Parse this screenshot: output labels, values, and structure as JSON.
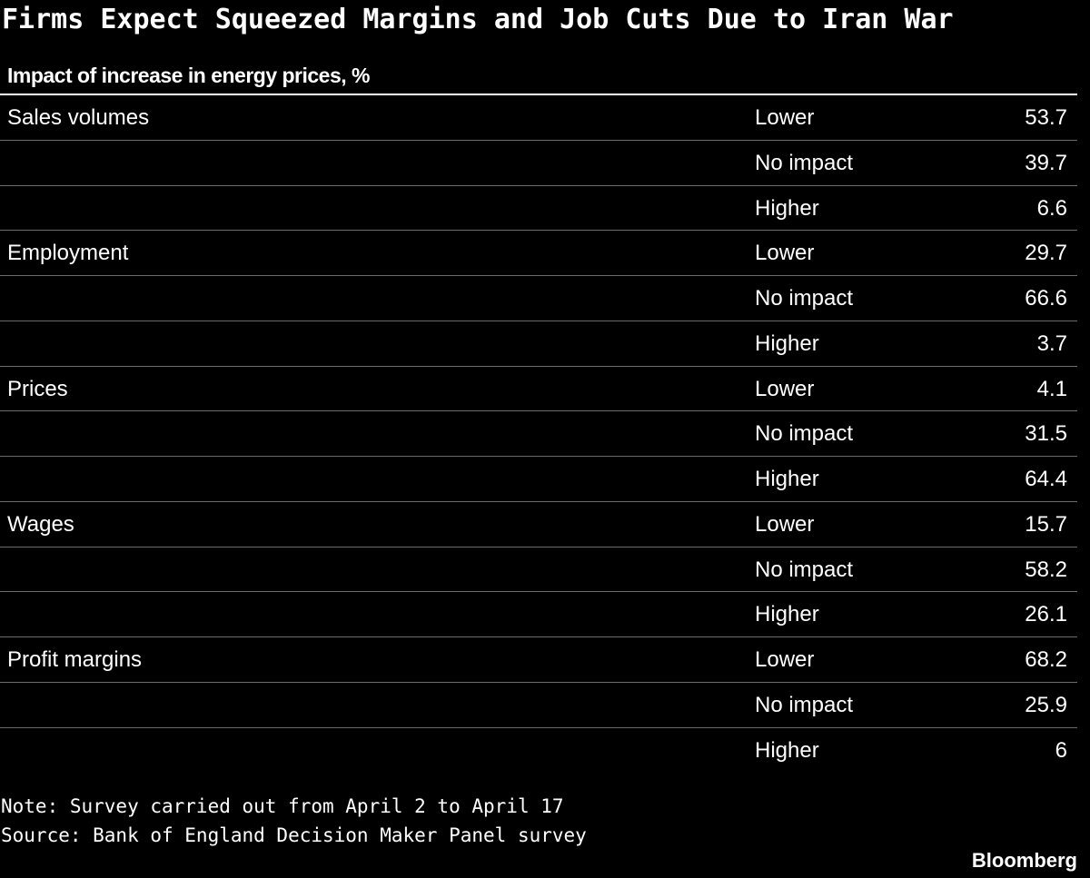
{
  "chart_data": {
    "type": "table",
    "title": "Firms Expect Squeezed Margins and Job Cuts Due to Iran War",
    "subtitle": "Impact of increase in energy prices, %",
    "rows": [
      {
        "category": "Sales volumes",
        "impact": "Lower",
        "value": "53.7"
      },
      {
        "category": "",
        "impact": "No impact",
        "value": "39.7"
      },
      {
        "category": "",
        "impact": "Higher",
        "value": "6.6"
      },
      {
        "category": "Employment",
        "impact": "Lower",
        "value": "29.7"
      },
      {
        "category": "",
        "impact": "No impact",
        "value": "66.6"
      },
      {
        "category": "",
        "impact": "Higher",
        "value": "3.7"
      },
      {
        "category": "Prices",
        "impact": "Lower",
        "value": "4.1"
      },
      {
        "category": "",
        "impact": "No impact",
        "value": "31.5"
      },
      {
        "category": "",
        "impact": "Higher",
        "value": "64.4"
      },
      {
        "category": "Wages",
        "impact": "Lower",
        "value": "15.7"
      },
      {
        "category": "",
        "impact": "No impact",
        "value": "58.2"
      },
      {
        "category": "",
        "impact": "Higher",
        "value": "26.1"
      },
      {
        "category": "Profit margins",
        "impact": "Lower",
        "value": "68.2"
      },
      {
        "category": "",
        "impact": "No impact",
        "value": "25.9"
      },
      {
        "category": "",
        "impact": "Higher",
        "value": "6"
      }
    ],
    "note": "Note: Survey carried out from April 2 to April 17",
    "source": "Source: Bank of England Decision Maker Panel survey",
    "brand": "Bloomberg"
  },
  "colors": {
    "background": "#000000",
    "text": "#ffffff",
    "rule": "#6b6b6b"
  }
}
